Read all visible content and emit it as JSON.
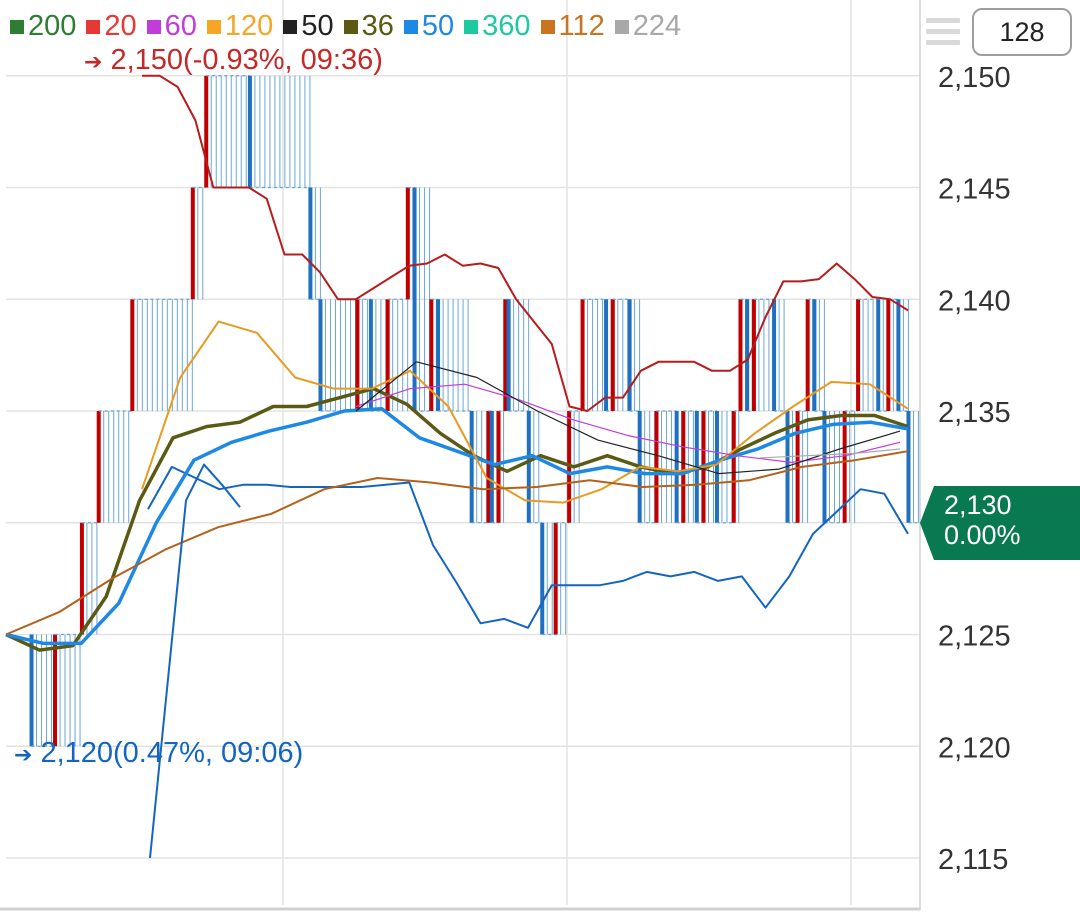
{
  "legend": [
    {
      "label": "200",
      "color": "#2e7d32"
    },
    {
      "label": "20",
      "color": "#e53935"
    },
    {
      "label": "60",
      "color": "#c13cd8"
    },
    {
      "label": "120",
      "color": "#f5a623"
    },
    {
      "label": "50",
      "color": "#222222"
    },
    {
      "label": "36",
      "color": "#5a5a14"
    },
    {
      "label": "50",
      "color": "#1e88e5"
    },
    {
      "label": "360",
      "color": "#1fc9a0"
    },
    {
      "label": "112",
      "color": "#c87420"
    },
    {
      "label": "224",
      "color": "#a8a8a8"
    }
  ],
  "high_label": "2,150(-0.93%, 09:36)",
  "low_label": "2,120(0.47%, 09:06)",
  "menu_icon": "hamburger-icon",
  "count_button": "128",
  "current_price": {
    "value": "2,130",
    "change": "0.00%"
  },
  "colors": {
    "up": "#c62828",
    "down": "#1565c0",
    "tag": "#087950"
  },
  "chart_data": {
    "type": "line",
    "title": "",
    "xlabel": "",
    "ylabel": "",
    "ylim": [
      2114,
      2151.5
    ],
    "y_ticks": [
      "2,115",
      "2,120",
      "2,125",
      "2,130",
      "2,135",
      "2,140",
      "2,145",
      "2,150"
    ],
    "grid": true,
    "n": 90,
    "ticks_series": {
      "up_index": [
        7,
        14,
        22,
        27,
        37,
        55,
        59,
        72,
        90,
        93,
        104,
        108,
        113,
        119,
        121,
        126,
        128,
        138,
        143,
        144,
        146,
        148,
        149,
        155,
        159,
        163,
        167,
        171,
        178,
        180,
        185,
        188,
        193,
        199,
        201,
        205,
        207,
        211,
        216,
        218,
        220,
        222,
        228,
        232,
        235,
        238,
        240,
        243,
        249,
        253,
        259,
        262,
        265,
        268
      ],
      "up_value": [
        2120,
        2125,
        2130,
        2135,
        2140,
        2145,
        2150,
        2145,
        2140,
        2135,
        2140,
        2135,
        2140,
        2145,
        2135,
        2140,
        2135,
        2130,
        2135,
        2130,
        2135,
        2140,
        2135,
        2130,
        2125,
        2130,
        2135,
        2140,
        2135,
        2140,
        2135,
        2130,
        2135,
        2130,
        2135,
        2130,
        2135,
        2130,
        2135,
        2140,
        2135,
        2140,
        2135,
        2130,
        2135,
        2140,
        2135,
        2130,
        2135,
        2140,
        2135,
        2140,
        2135,
        2130
      ]
    },
    "series": [
      {
        "name": "20",
        "color": "#b71c1c",
        "values": [
          2150,
          2150,
          2149.5,
          2148,
          2145,
          2145,
          2145,
          2144.5,
          2142,
          2142,
          2141.2,
          2140,
          2140,
          2140.5,
          2141,
          2141.5,
          2141.6,
          2142,
          2141.5,
          2141.6,
          2141.4,
          2140,
          2139,
          2138,
          2135.2,
          2135,
          2135.6,
          2135.6,
          2136.8,
          2137.2,
          2137.2,
          2137.2,
          2136.8,
          2136.8,
          2137.3,
          2139.2,
          2140.8,
          2140.8,
          2140.9,
          2141.6,
          2140.9,
          2140.1,
          2140,
          2139.5
        ]
      },
      {
        "name": "50",
        "color": "#1565c0",
        "values": [
          2130.6,
          2132.5,
          2132,
          2131.5,
          2131.7,
          2131.7,
          2131.6,
          2131.6,
          2131.6,
          2131.6,
          2131.7,
          2131.8,
          2129,
          2127.3,
          2125.5,
          2125.7,
          2125.3,
          2127.2,
          2127.2,
          2127.2,
          2127.4,
          2127.8,
          2127.6,
          2127.8,
          2127.4,
          2127.6,
          2126.2,
          2127.6,
          2129.5,
          2130.5,
          2131.5,
          2131.3,
          2129.5
        ]
      },
      {
        "name": "36",
        "color": "#5a5a14",
        "values": [
          2125,
          2124.3,
          2124.5,
          2126.7,
          2131,
          2133.8,
          2134.3,
          2134.5,
          2135.2,
          2135.2,
          2135.6,
          2136,
          2135.3,
          2134,
          2133,
          2132.3,
          2133,
          2132.5,
          2133,
          2132.5,
          2132.2,
          2132.5,
          2133.3,
          2134,
          2134.6,
          2134.8,
          2134.8,
          2134.3
        ]
      },
      {
        "name": "50",
        "color": "#1e88e5",
        "values": [
          2125,
          2124.6,
          2124.6,
          2126.4,
          2130,
          2132.8,
          2133.6,
          2134.1,
          2134.5,
          2135,
          2135.1,
          2133.8,
          2133.2,
          2132.6,
          2133,
          2132.2,
          2132.5,
          2132.2,
          2132.2,
          2132.8,
          2133.3,
          2134,
          2134.4,
          2134.5,
          2134.2
        ]
      },
      {
        "name": "120",
        "color": "#e89b20",
        "values": [
          2131.5,
          2136.5,
          2139,
          2138.5,
          2136.5,
          2136,
          2136,
          2136.8,
          2135.2,
          2132,
          2131,
          2130.9,
          2131.5,
          2132.5,
          2132.3,
          2132.6,
          2134,
          2135.2,
          2136.3,
          2136.2,
          2135.1
        ]
      },
      {
        "name": "112",
        "color": "#b4621a",
        "values": [
          2125,
          2126,
          2127.5,
          2128.8,
          2129.8,
          2130.4,
          2131.5,
          2132,
          2131.8,
          2131.5,
          2131.6,
          2131.9,
          2131.6,
          2131.7,
          2131.9,
          2132.5,
          2132.8,
          2133.2
        ]
      },
      {
        "name": "60",
        "color": "#c13cd8",
        "values": [
          2135.2,
          2136,
          2136.2,
          2135.5,
          2134.6,
          2133.9,
          2133.4,
          2133,
          2132.7,
          2133,
          2133.6
        ]
      },
      {
        "name": "50",
        "color": "#222222",
        "values": [
          2135,
          2137.2,
          2136.5,
          2135,
          2133.7,
          2133,
          2132.2,
          2132.4,
          2133.3,
          2134.1
        ]
      },
      {
        "name": "224",
        "color": "#a8a8a8",
        "values": [
          2132.9,
          2133,
          2133.1,
          2133.3
        ]
      },
      {
        "name": "",
        "color": "#1565c0",
        "values": [
          2115,
          2123,
          2131,
          2132.6,
          2131.7,
          2130.7
        ]
      }
    ]
  }
}
